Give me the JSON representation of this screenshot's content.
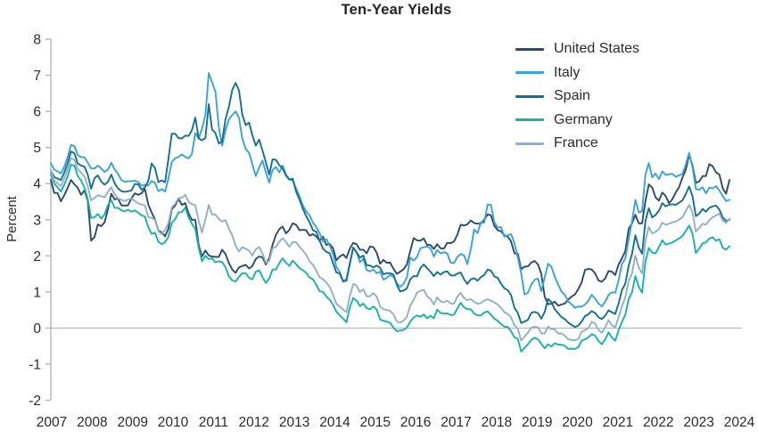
{
  "page": {
    "title": "Ten-Year Yields"
  },
  "chart_data": {
    "type": "line",
    "title": "Ten-Year Yields",
    "xlabel": "",
    "ylabel": "Percent",
    "ylim": [
      -2,
      8
    ],
    "y_ticks": [
      8,
      7,
      6,
      5,
      4,
      3,
      2,
      1,
      0,
      -1,
      -2
    ],
    "x_tick_labels": [
      "2007",
      "2008",
      "2009",
      "2010",
      "2011",
      "2012",
      "2013",
      "2014",
      "2015",
      "2016",
      "2017",
      "2018",
      "2019",
      "2020",
      "2021",
      "2022",
      "2023",
      "2024"
    ],
    "frequency": "monthly",
    "grid": "zero-line-only",
    "legend_position": "top-right",
    "axis_color": "#b0b0b0",
    "zero_line_color": "#a9a9a9",
    "text_color": "#2b2b2b",
    "series": [
      {
        "name": "United States",
        "color": "#2b4a6f",
        "values": [
          4.1,
          3.74,
          3.74,
          3.51,
          3.68,
          3.88,
          4.1,
          3.98,
          3.89,
          3.69,
          3.81,
          3.53,
          2.42,
          2.52,
          2.87,
          2.82,
          2.93,
          3.29,
          3.72,
          3.56,
          3.59,
          3.4,
          3.39,
          3.4,
          3.59,
          3.73,
          3.69,
          3.73,
          3.85,
          3.42,
          3.2,
          3.01,
          2.7,
          2.65,
          2.54,
          2.76,
          3.29,
          3.39,
          3.58,
          3.41,
          3.46,
          3.17,
          3.0,
          3.0,
          2.3,
          1.98,
          2.15,
          2.01,
          1.98,
          1.97,
          1.97,
          2.17,
          2.05,
          1.8,
          1.62,
          1.53,
          1.68,
          1.72,
          1.75,
          1.65,
          1.72,
          1.91,
          1.98,
          1.96,
          1.76,
          1.93,
          2.3,
          2.58,
          2.74,
          2.81,
          2.62,
          2.72,
          2.9,
          2.86,
          2.71,
          2.72,
          2.71,
          2.56,
          2.6,
          2.54,
          2.42,
          2.53,
          2.3,
          2.33,
          2.21,
          1.88,
          1.98,
          2.04,
          1.94,
          2.2,
          2.36,
          2.32,
          2.17,
          2.17,
          2.07,
          2.26,
          2.24,
          2.09,
          1.78,
          1.89,
          1.81,
          1.81,
          1.64,
          1.5,
          1.56,
          1.63,
          1.76,
          2.14,
          2.49,
          2.43,
          2.42,
          2.48,
          2.3,
          2.3,
          2.19,
          2.32,
          2.21,
          2.2,
          2.36,
          2.35,
          2.4,
          2.58,
          2.86,
          2.84,
          2.87,
          2.98,
          2.91,
          2.89,
          2.89,
          3.0,
          3.15,
          3.12,
          2.83,
          2.71,
          2.68,
          2.57,
          2.53,
          2.4,
          2.07,
          2.06,
          1.63,
          1.7,
          1.71,
          1.81,
          1.86,
          1.76,
          1.5,
          0.87,
          0.66,
          0.67,
          0.73,
          0.62,
          0.65,
          0.68,
          0.79,
          0.87,
          0.93,
          1.08,
          1.26,
          1.61,
          1.64,
          1.62,
          1.52,
          1.32,
          1.28,
          1.37,
          1.58,
          1.56,
          1.47,
          1.76,
          1.93,
          2.13,
          2.75,
          2.9,
          3.14,
          2.9,
          2.9,
          3.52,
          3.98,
          3.89,
          3.62,
          3.53,
          3.75,
          3.66,
          3.46,
          3.57,
          3.75,
          3.9,
          4.17,
          4.38,
          4.8,
          4.5,
          4.02,
          4.06,
          4.21,
          4.21,
          4.54,
          4.48,
          4.31,
          4.25,
          3.87,
          3.72,
          4.1
        ]
      },
      {
        "name": "Italy",
        "color": "#3aa2da",
        "values": [
          4.57,
          4.39,
          4.34,
          4.28,
          4.47,
          4.73,
          5.07,
          5.04,
          4.8,
          4.73,
          4.73,
          4.58,
          4.42,
          4.42,
          4.5,
          4.42,
          4.32,
          4.39,
          4.58,
          4.39,
          4.27,
          4.1,
          4.05,
          4.07,
          4.07,
          4.08,
          4.05,
          3.94,
          3.97,
          3.95,
          4.07,
          4.02,
          3.79,
          3.85,
          3.78,
          4.15,
          4.6,
          4.7,
          4.74,
          4.81,
          4.74,
          4.7,
          4.82,
          5.4,
          5.25,
          5.52,
          5.9,
          7.06,
          6.81,
          6.54,
          5.55,
          5.05,
          5.48,
          5.78,
          5.9,
          6.0,
          5.82,
          5.25,
          4.96,
          4.85,
          4.54,
          4.21,
          4.45,
          4.64,
          4.31,
          4.03,
          4.38,
          4.46,
          4.31,
          4.5,
          4.25,
          4.11,
          4.09,
          3.87,
          3.65,
          3.4,
          3.23,
          3.12,
          2.92,
          2.8,
          2.63,
          2.4,
          2.46,
          2.29,
          2.04,
          1.69,
          1.55,
          1.29,
          1.36,
          1.81,
          2.23,
          2.1,
          1.82,
          1.92,
          1.61,
          1.57,
          1.62,
          1.52,
          1.56,
          1.34,
          1.39,
          1.47,
          1.42,
          1.24,
          1.14,
          1.23,
          1.4,
          1.95,
          1.87,
          1.97,
          2.21,
          2.24,
          2.26,
          2.21,
          1.98,
          2.16,
          2.07,
          2.1,
          2.07,
          1.81,
          1.8,
          1.97,
          2.05,
          2.01,
          1.77,
          2.18,
          2.73,
          2.63,
          2.93,
          2.92,
          3.42,
          3.41,
          2.93,
          2.78,
          2.8,
          2.53,
          2.57,
          2.6,
          2.35,
          1.95,
          1.52,
          0.93,
          0.98,
          1.2,
          1.34,
          1.37,
          1.02,
          1.4,
          1.78,
          1.7,
          1.42,
          1.2,
          1.01,
          0.92,
          0.73,
          0.66,
          0.56,
          0.6,
          0.59,
          0.65,
          0.76,
          0.92,
          0.82,
          0.68,
          0.6,
          0.73,
          0.92,
          0.99,
          0.98,
          1.32,
          1.78,
          1.92,
          2.47,
          2.95,
          3.55,
          3.2,
          3.23,
          4.26,
          4.57,
          4.17,
          4.28,
          4.12,
          4.34,
          4.24,
          4.26,
          4.27,
          4.19,
          4.23,
          4.27,
          4.53,
          4.85,
          4.45,
          3.85,
          3.83,
          3.9,
          3.73,
          3.89,
          3.87,
          3.93,
          3.81,
          3.65,
          3.52,
          3.55
        ]
      },
      {
        "name": "Spain",
        "color": "#156f91",
        "values": [
          4.35,
          4.18,
          4.14,
          4.1,
          4.31,
          4.56,
          4.89,
          4.84,
          4.56,
          4.5,
          4.47,
          4.25,
          3.86,
          4.15,
          4.23,
          4.06,
          3.97,
          4.05,
          4.25,
          4.01,
          3.87,
          3.79,
          3.77,
          3.79,
          3.81,
          3.99,
          3.98,
          3.83,
          3.9,
          4.08,
          4.56,
          4.43,
          4.04,
          4.09,
          4.04,
          4.69,
          5.38,
          5.38,
          5.26,
          5.25,
          5.33,
          5.32,
          5.48,
          5.83,
          5.25,
          5.2,
          5.26,
          6.2,
          5.5,
          5.4,
          5.11,
          5.17,
          5.79,
          6.13,
          6.59,
          6.79,
          6.58,
          5.91,
          5.62,
          5.69,
          5.34,
          5.05,
          5.22,
          4.92,
          4.59,
          4.25,
          4.67,
          4.66,
          4.51,
          4.42,
          4.22,
          4.11,
          4.14,
          3.78,
          3.56,
          3.31,
          3.1,
          2.93,
          2.71,
          2.67,
          2.42,
          2.2,
          2.11,
          2.07,
          1.79,
          1.54,
          1.51,
          1.29,
          1.31,
          1.77,
          2.23,
          2.1,
          1.95,
          2.01,
          1.74,
          1.73,
          1.68,
          1.73,
          1.67,
          1.49,
          1.52,
          1.52,
          1.48,
          1.19,
          1.01,
          1.04,
          1.1,
          1.35,
          1.44,
          1.43,
          1.66,
          1.76,
          1.66,
          1.56,
          1.44,
          1.55,
          1.48,
          1.55,
          1.57,
          1.46,
          1.45,
          1.51,
          1.54,
          1.35,
          1.22,
          1.35,
          1.38,
          1.31,
          1.41,
          1.47,
          1.62,
          1.59,
          1.43,
          1.39,
          1.23,
          1.1,
          1.05,
          0.91,
          0.56,
          0.42,
          0.14,
          0.18,
          0.23,
          0.42,
          0.45,
          0.41,
          0.26,
          0.45,
          0.81,
          0.72,
          0.52,
          0.41,
          0.3,
          0.25,
          0.15,
          0.09,
          0.03,
          0.07,
          0.18,
          0.33,
          0.38,
          0.47,
          0.42,
          0.3,
          0.25,
          0.34,
          0.49,
          0.44,
          0.39,
          0.68,
          1.05,
          1.23,
          1.73,
          2.05,
          2.57,
          2.23,
          2.06,
          2.97,
          3.32,
          3.06,
          3.13,
          3.25,
          3.46,
          3.37,
          3.41,
          3.43,
          3.41,
          3.47,
          3.54,
          3.71,
          3.92,
          3.65,
          3.1,
          3.17,
          3.3,
          3.22,
          3.33,
          3.37,
          3.39,
          3.28,
          3.06,
          2.97,
          3.0
        ]
      },
      {
        "name": "Germany",
        "color": "#19b2a4",
        "values": [
          4.28,
          4.0,
          3.9,
          3.78,
          3.97,
          4.2,
          4.52,
          4.5,
          4.21,
          4.09,
          3.89,
          3.57,
          3.05,
          3.07,
          3.16,
          3.03,
          3.15,
          3.41,
          3.54,
          3.33,
          3.33,
          3.26,
          3.23,
          3.28,
          3.22,
          3.26,
          3.19,
          3.12,
          3.09,
          2.79,
          2.61,
          2.64,
          2.39,
          2.32,
          2.38,
          2.53,
          2.91,
          3.02,
          3.2,
          3.21,
          3.34,
          3.06,
          2.89,
          2.74,
          2.22,
          1.85,
          2.0,
          1.91,
          1.93,
          1.82,
          1.85,
          1.83,
          1.68,
          1.43,
          1.32,
          1.29,
          1.42,
          1.52,
          1.52,
          1.39,
          1.35,
          1.56,
          1.6,
          1.41,
          1.25,
          1.37,
          1.62,
          1.62,
          1.8,
          1.93,
          1.81,
          1.72,
          1.87,
          1.77,
          1.66,
          1.6,
          1.53,
          1.4,
          1.35,
          1.2,
          1.02,
          1.0,
          0.87,
          0.79,
          0.64,
          0.45,
          0.35,
          0.26,
          0.16,
          0.58,
          0.83,
          0.76,
          0.61,
          0.68,
          0.55,
          0.52,
          0.6,
          0.51,
          0.24,
          0.2,
          0.18,
          0.14,
          0.01,
          -0.09,
          -0.07,
          -0.05,
          0.02,
          0.18,
          0.29,
          0.35,
          0.31,
          0.38,
          0.27,
          0.34,
          0.27,
          0.51,
          0.42,
          0.4,
          0.41,
          0.36,
          0.37,
          0.54,
          0.7,
          0.57,
          0.52,
          0.52,
          0.4,
          0.35,
          0.35,
          0.43,
          0.46,
          0.37,
          0.26,
          0.2,
          0.11,
          0.04,
          0.03,
          -0.09,
          -0.26,
          -0.3,
          -0.65,
          -0.55,
          -0.45,
          -0.33,
          -0.27,
          -0.31,
          -0.44,
          -0.56,
          -0.45,
          -0.51,
          -0.42,
          -0.46,
          -0.46,
          -0.49,
          -0.58,
          -0.57,
          -0.58,
          -0.53,
          -0.35,
          -0.31,
          -0.26,
          -0.17,
          -0.21,
          -0.36,
          -0.45,
          -0.31,
          -0.12,
          -0.26,
          -0.35,
          -0.06,
          0.17,
          0.37,
          0.81,
          0.99,
          1.44,
          1.14,
          0.98,
          1.85,
          2.22,
          2.09,
          2.07,
          2.24,
          2.43,
          2.31,
          2.34,
          2.37,
          2.43,
          2.48,
          2.55,
          2.69,
          2.84,
          2.61,
          2.08,
          2.2,
          2.35,
          2.37,
          2.48,
          2.51,
          2.42,
          2.46,
          2.22,
          2.17,
          2.27
        ]
      },
      {
        "name": "France",
        "color": "#93afc6",
        "values": [
          4.35,
          4.08,
          4.01,
          3.93,
          4.15,
          4.4,
          4.7,
          4.66,
          4.4,
          4.3,
          4.2,
          3.93,
          3.54,
          3.6,
          3.68,
          3.65,
          3.62,
          3.77,
          3.9,
          3.7,
          3.59,
          3.55,
          3.52,
          3.56,
          3.59,
          3.52,
          3.45,
          3.42,
          3.39,
          3.08,
          3.05,
          3.0,
          2.68,
          2.6,
          2.72,
          2.91,
          3.34,
          3.44,
          3.6,
          3.61,
          3.69,
          3.49,
          3.43,
          3.4,
          2.98,
          2.64,
          3.0,
          3.41,
          3.15,
          3.14,
          3.02,
          2.95,
          2.99,
          2.75,
          2.57,
          2.28,
          2.12,
          2.24,
          2.2,
          2.14,
          2.01,
          2.18,
          2.24,
          2.07,
          1.81,
          1.86,
          2.21,
          2.25,
          2.39,
          2.49,
          2.38,
          2.25,
          2.38,
          2.38,
          2.25,
          2.15,
          2.03,
          1.85,
          1.75,
          1.59,
          1.41,
          1.35,
          1.26,
          1.14,
          0.92,
          0.67,
          0.6,
          0.51,
          0.44,
          0.89,
          1.22,
          1.18,
          1.0,
          1.07,
          0.88,
          0.88,
          0.97,
          0.87,
          0.6,
          0.52,
          0.5,
          0.47,
          0.38,
          0.18,
          0.15,
          0.21,
          0.31,
          0.63,
          0.78,
          0.98,
          1.03,
          1.06,
          0.88,
          0.81,
          0.65,
          0.85,
          0.74,
          0.71,
          0.76,
          0.68,
          0.67,
          0.87,
          0.98,
          0.83,
          0.77,
          0.8,
          0.73,
          0.67,
          0.69,
          0.76,
          0.8,
          0.76,
          0.71,
          0.65,
          0.56,
          0.44,
          0.39,
          0.3,
          0.08,
          -0.02,
          -0.34,
          -0.24,
          -0.13,
          0.01,
          0.04,
          0.02,
          -0.15,
          -0.15,
          0.04,
          -0.03,
          -0.04,
          -0.15,
          -0.15,
          -0.21,
          -0.31,
          -0.33,
          -0.34,
          -0.3,
          -0.1,
          -0.06,
          0.0,
          0.17,
          0.13,
          -0.05,
          -0.13,
          0.02,
          0.22,
          0.08,
          0.02,
          0.3,
          0.6,
          0.85,
          1.31,
          1.51,
          2.01,
          1.67,
          1.51,
          2.43,
          2.8,
          2.62,
          2.66,
          2.74,
          2.92,
          2.86,
          2.89,
          2.93,
          2.95,
          3.0,
          3.07,
          3.24,
          3.41,
          3.19,
          2.67,
          2.77,
          2.89,
          2.86,
          2.99,
          3.07,
          3.12,
          3.17,
          2.98,
          2.91,
          3.03
        ]
      }
    ]
  }
}
